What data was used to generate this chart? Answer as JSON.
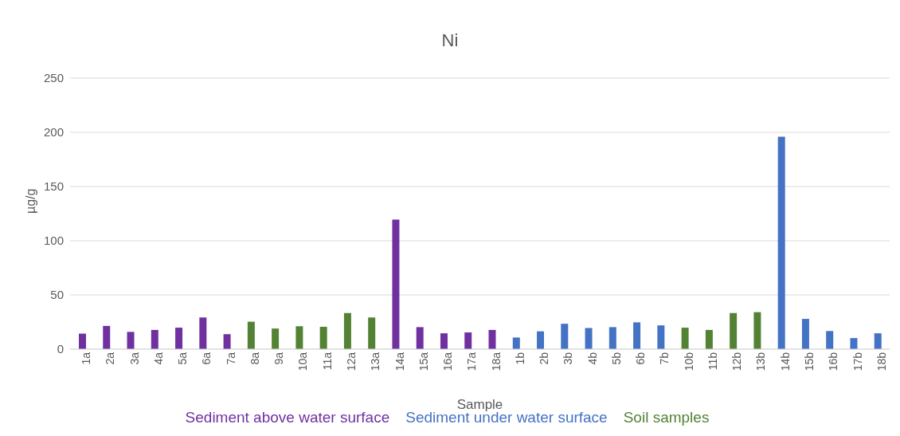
{
  "chart_data": {
    "type": "bar",
    "title": "Ni",
    "xlabel": "Sample",
    "ylabel": "µg/g",
    "stacked": true,
    "categories": [
      "1a",
      "2a",
      "3a",
      "4a",
      "5a",
      "6a",
      "7a",
      "8a",
      "9a",
      "10a",
      "11a",
      "12a",
      "13a",
      "14a",
      "15a",
      "16a",
      "17a",
      "18a",
      "1b",
      "2b",
      "3b",
      "4b",
      "5b",
      "6b",
      "7b",
      "10b",
      "11b",
      "12b",
      "13b",
      "14b",
      "15b",
      "16b",
      "17b",
      "18b"
    ],
    "series": [
      {
        "name": "Sediment above water surface",
        "color": "#7030a0",
        "values": [
          14.3,
          21.4,
          15.9,
          17.7,
          19.8,
          29.2,
          13.8,
          null,
          null,
          null,
          null,
          null,
          null,
          119.5,
          20.3,
          14.6,
          15.4,
          17.7,
          null,
          null,
          null,
          null,
          null,
          null,
          null,
          null,
          null,
          null,
          null,
          null,
          null,
          null,
          null,
          null
        ]
      },
      {
        "name": "Sediment under water surface",
        "color": "#4472c4",
        "values": [
          null,
          null,
          null,
          null,
          null,
          null,
          null,
          null,
          null,
          null,
          null,
          null,
          null,
          null,
          null,
          null,
          null,
          null,
          10.7,
          16.4,
          23.4,
          19.5,
          20.3,
          24.7,
          21.9,
          null,
          null,
          null,
          null,
          196,
          27.9,
          16.7,
          10.2,
          14.6
        ]
      },
      {
        "name": "Soil samples",
        "color": "#548235",
        "values": [
          null,
          null,
          null,
          null,
          null,
          null,
          null,
          25.3,
          19,
          21.1,
          20.6,
          33.3,
          29.2,
          null,
          null,
          null,
          null,
          null,
          null,
          null,
          null,
          null,
          null,
          null,
          null,
          19.8,
          17.7,
          33.3,
          34.1,
          null,
          null,
          null,
          null,
          null
        ]
      }
    ],
    "ylim": [
      0,
      250
    ],
    "yticks": [
      0,
      50,
      100,
      150,
      200,
      250
    ],
    "grid": "y",
    "legend": "bottom"
  }
}
